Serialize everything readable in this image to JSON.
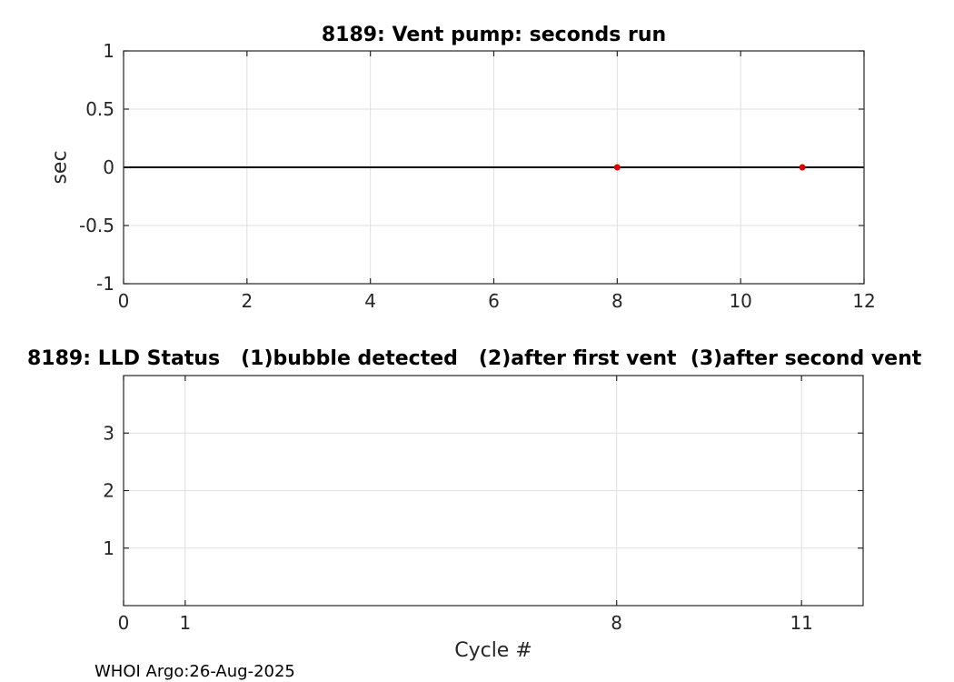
{
  "footer": {
    "credit": "WHOI Argo:26-Aug-2025"
  },
  "colors": {
    "axis": "#262626",
    "grid": "#e0e0e0",
    "zero_line": "#000000",
    "marker": "#e00000",
    "background": "#ffffff"
  },
  "chart_data": [
    {
      "type": "scatter",
      "title": "8189: Vent pump: seconds run",
      "xlabel": "",
      "ylabel": "sec",
      "xlim": [
        0,
        12
      ],
      "ylim": [
        -1,
        1
      ],
      "xticks": [
        0,
        2,
        4,
        6,
        8,
        10,
        12
      ],
      "xtick_labels": [
        "0",
        "2",
        "4",
        "6",
        "8",
        "10",
        "12"
      ],
      "yticks": [
        -1,
        -0.5,
        0,
        0.5,
        1
      ],
      "ytick_labels": [
        "-1",
        "-0.5",
        "0",
        "0.5",
        "1"
      ],
      "grid": true,
      "legend": null,
      "zero_line_y": 0,
      "points": [
        {
          "x": 8,
          "y": 0
        },
        {
          "x": 11,
          "y": 0
        }
      ]
    },
    {
      "type": "scatter",
      "title": "8189: LLD Status   (1)bubble detected   (2)after first vent  (3)after second vent",
      "xlabel": "Cycle #",
      "ylabel": "",
      "xlim": [
        0,
        12
      ],
      "ylim": [
        0,
        4
      ],
      "xticks": [
        0,
        1,
        8,
        11
      ],
      "xtick_labels": [
        "0",
        "1",
        "8",
        "11"
      ],
      "yticks": [
        1,
        2,
        3
      ],
      "ytick_labels": [
        "1",
        "2",
        "3"
      ],
      "grid": true,
      "legend": null,
      "zero_line_y": null,
      "points": []
    }
  ]
}
